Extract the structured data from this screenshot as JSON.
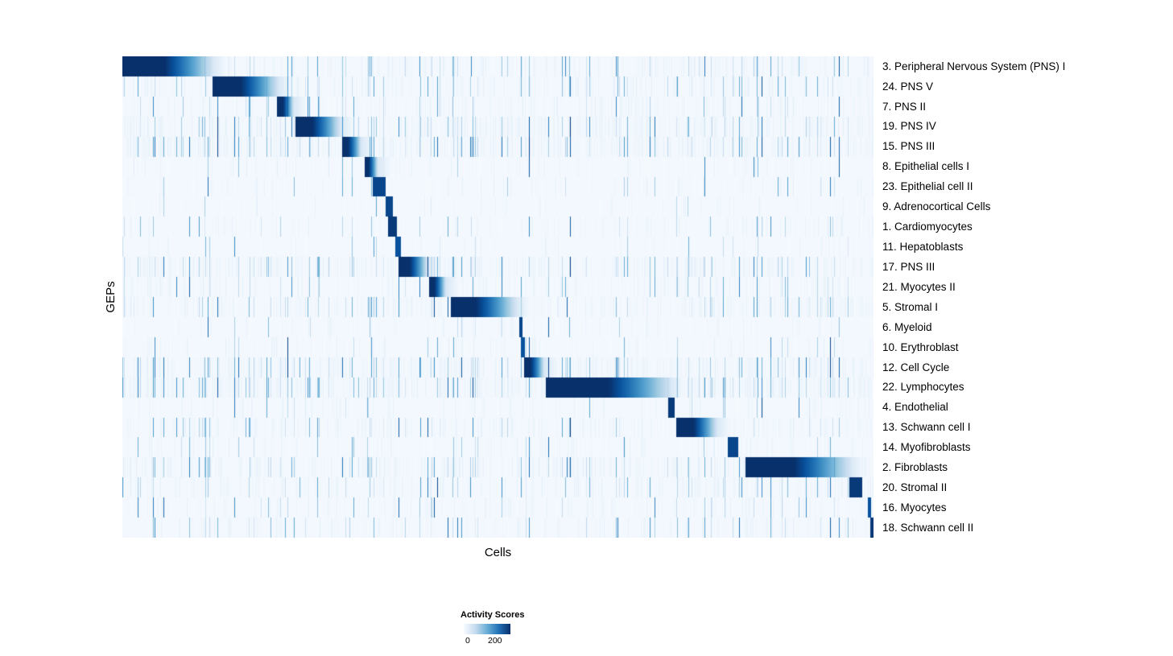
{
  "chart_data": {
    "type": "heatmap",
    "title": "",
    "xlabel": "Cells",
    "ylabel": "GEPs",
    "grid": false,
    "legend_position": "bottom",
    "colorbar": {
      "label": "Activity Scores",
      "min": 0,
      "max": 200,
      "ticks": [
        "0",
        "200"
      ],
      "colormap": "Blues",
      "colors": [
        "#f7fbff",
        "#deebf7",
        "#c6dbef",
        "#9ecae1",
        "#6baed6",
        "#4292c6",
        "#2171b5",
        "#08519c",
        "#08306b"
      ]
    },
    "n_rows": 24,
    "rows": [
      {
        "label": "3. Peripheral Nervous System (PNS) I",
        "block": [
          0.0,
          0.12
        ],
        "peak": 230,
        "noise": 0.5
      },
      {
        "label": "24. PNS V",
        "block": [
          0.12,
          0.208
        ],
        "peak": 220,
        "noise": 0.5
      },
      {
        "label": "7. PNS II",
        "block": [
          0.205,
          0.228
        ],
        "peak": 210,
        "noise": 0.35
      },
      {
        "label": "19. PNS IV",
        "block": [
          0.23,
          0.29
        ],
        "peak": 210,
        "noise": 0.7
      },
      {
        "label": "15. PNS III",
        "block": [
          0.292,
          0.318
        ],
        "peak": 200,
        "noise": 0.8
      },
      {
        "label": "8. Epithelial cells I",
        "block": [
          0.322,
          0.34
        ],
        "peak": 200,
        "noise": 0.15
      },
      {
        "label": "23. Epithelial cell II",
        "block": [
          0.333,
          0.35
        ],
        "peak": 200,
        "noise": 0.15
      },
      {
        "label": "9. Adrenocortical Cells",
        "block": [
          0.35,
          0.36
        ],
        "peak": 200,
        "noise": 0.1
      },
      {
        "label": "1. Cardiomyocytes",
        "block": [
          0.354,
          0.365
        ],
        "peak": 210,
        "noise": 0.25
      },
      {
        "label": "11. Hepatoblasts",
        "block": [
          0.363,
          0.371
        ],
        "peak": 190,
        "noise": 0.1
      },
      {
        "label": "17. PNS III",
        "block": [
          0.368,
          0.406
        ],
        "peak": 210,
        "noise": 0.6
      },
      {
        "label": "21. Myocytes II",
        "block": [
          0.408,
          0.431
        ],
        "peak": 200,
        "noise": 0.3
      },
      {
        "label": "5. Stromal I",
        "block": [
          0.437,
          0.525
        ],
        "peak": 210,
        "noise": 0.5
      },
      {
        "label": "6. Myeloid",
        "block": [
          0.528,
          0.533
        ],
        "peak": 200,
        "noise": 0.15
      },
      {
        "label": "10. Erythroblast",
        "block": [
          0.531,
          0.536
        ],
        "peak": 190,
        "noise": 0.2
      },
      {
        "label": "12. Cell Cycle",
        "block": [
          0.535,
          0.562
        ],
        "peak": 200,
        "noise": 0.7
      },
      {
        "label": "22. Lymphocytes",
        "block": [
          0.564,
          0.73
        ],
        "peak": 240,
        "noise": 0.8
      },
      {
        "label": "4. Endothelial",
        "block": [
          0.727,
          0.736
        ],
        "peak": 210,
        "noise": 0.2
      },
      {
        "label": "13. Schwann cell I",
        "block": [
          0.738,
          0.792
        ],
        "peak": 220,
        "noise": 0.5
      },
      {
        "label": "14. Myofibroblasts",
        "block": [
          0.806,
          0.82
        ],
        "peak": 200,
        "noise": 0.25
      },
      {
        "label": "2. Fibroblasts",
        "block": [
          0.83,
          0.97
        ],
        "peak": 230,
        "noise": 0.6
      },
      {
        "label": "20. Stromal II",
        "block": [
          0.968,
          0.985
        ],
        "peak": 210,
        "noise": 0.5
      },
      {
        "label": "16. Myocytes",
        "block": [
          0.993,
          0.997
        ],
        "peak": 190,
        "noise": 0.3
      },
      {
        "label": "18. Schwann cell II",
        "block": [
          0.996,
          1.0
        ],
        "peak": 210,
        "noise": 0.4
      }
    ]
  }
}
